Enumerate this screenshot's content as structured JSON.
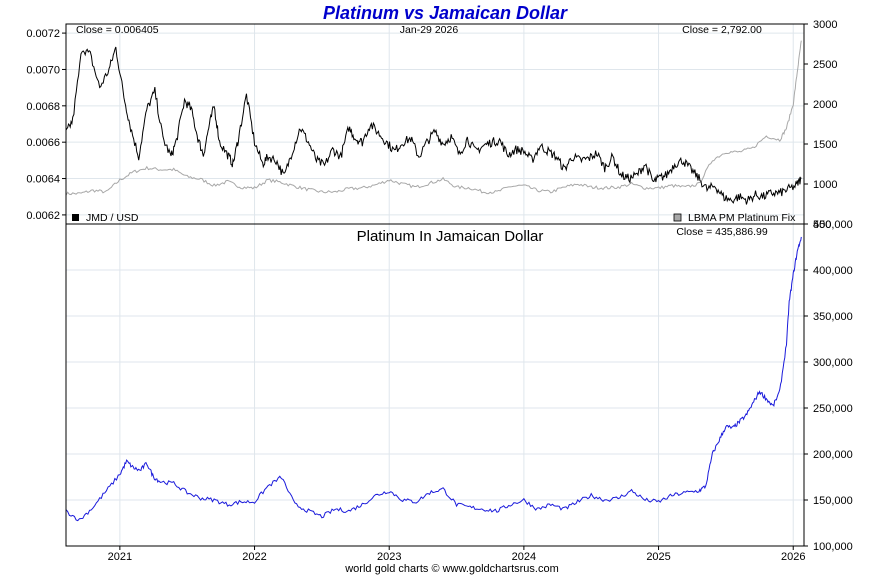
{
  "title": "Platinum vs Jamaican Dollar",
  "footer": "world gold charts © www.goldchartsrus.com",
  "top_panel": {
    "close_left": "Close = 0.006405",
    "date": "Jan-29  2026",
    "close_right": "Close = 2,792.00",
    "legend_left": "JMD / USD",
    "legend_right": "LBMA PM Platinum Fix"
  },
  "bottom_panel": {
    "subtitle": "Platinum In Jamaican Dollar",
    "close": "Close = 435,886.99"
  },
  "x_ticks": [
    "2021",
    "2022",
    "2023",
    "2024",
    "2025",
    "2026"
  ],
  "top_left_ticks": [
    "0.0072",
    "0.0070",
    "0.0068",
    "0.0066",
    "0.0064",
    "0.0062"
  ],
  "top_right_ticks": [
    "3000",
    "2500",
    "2000",
    "1500",
    "1000",
    "500"
  ],
  "bottom_ticks": [
    "450,000",
    "400,000",
    "350,000",
    "300,000",
    "250,000",
    "200,000",
    "150,000",
    "100,000"
  ],
  "colors": {
    "jmd": "#000000",
    "platinum": "#a8a8a8",
    "platinum_jmd": "#1a1adb",
    "title": "#0000cc"
  },
  "chart_data": [
    {
      "type": "line",
      "title": "Platinum vs Jamaican Dollar",
      "x_range": [
        2020.6,
        2026.08
      ],
      "ylim_left": [
        0.00615,
        0.00725
      ],
      "ylim_right": [
        500,
        3000
      ],
      "grid": true,
      "legend": "bottom",
      "series": [
        {
          "name": "JMD / USD",
          "axis": "left",
          "x": [
            2020.6,
            2020.65,
            2020.72,
            2020.78,
            2020.85,
            2020.92,
            2020.97,
            2021.03,
            2021.08,
            2021.14,
            2021.2,
            2021.26,
            2021.32,
            2021.38,
            2021.42,
            2021.48,
            2021.53,
            2021.58,
            2021.62,
            2021.66,
            2021.7,
            2021.74,
            2021.8,
            2021.84,
            2021.88,
            2021.94,
            2022.0,
            2022.06,
            2022.1,
            2022.16,
            2022.22,
            2022.28,
            2022.34,
            2022.4,
            2022.46,
            2022.52,
            2022.58,
            2022.64,
            2022.7,
            2022.75,
            2022.8,
            2022.86,
            2022.92,
            2022.98,
            2023.04,
            2023.1,
            2023.16,
            2023.22,
            2023.28,
            2023.34,
            2023.4,
            2023.46,
            2023.52,
            2023.58,
            2023.64,
            2023.7,
            2023.76,
            2023.82,
            2023.88,
            2023.94,
            2024.0,
            2024.06,
            2024.12,
            2024.18,
            2024.24,
            2024.3,
            2024.36,
            2024.42,
            2024.48,
            2024.54,
            2024.6,
            2024.66,
            2024.72,
            2024.78,
            2024.84,
            2024.9,
            2024.96,
            2025.0,
            2025.06,
            2025.12,
            2025.18,
            2025.24,
            2025.3,
            2025.36,
            2025.42,
            2025.48,
            2025.54,
            2025.6,
            2025.66,
            2025.72,
            2025.78,
            2025.84,
            2025.9,
            2025.96,
            2026.02,
            2026.06
          ],
          "y": [
            0.00665,
            0.00672,
            0.00712,
            0.00708,
            0.0069,
            0.007,
            0.00712,
            0.00685,
            0.00668,
            0.00652,
            0.00678,
            0.00688,
            0.00662,
            0.00652,
            0.00661,
            0.00683,
            0.00678,
            0.00662,
            0.00653,
            0.00668,
            0.0068,
            0.0066,
            0.00653,
            0.00648,
            0.00662,
            0.00686,
            0.0066,
            0.00648,
            0.00652,
            0.0065,
            0.00641,
            0.00655,
            0.00668,
            0.0066,
            0.0065,
            0.00647,
            0.00656,
            0.00652,
            0.00668,
            0.00662,
            0.0066,
            0.0067,
            0.00665,
            0.0066,
            0.00655,
            0.0066,
            0.00662,
            0.00652,
            0.0066,
            0.00666,
            0.00659,
            0.00663,
            0.00653,
            0.00662,
            0.00655,
            0.00658,
            0.0066,
            0.00661,
            0.00653,
            0.00656,
            0.00655,
            0.0065,
            0.00658,
            0.00655,
            0.00652,
            0.00645,
            0.00652,
            0.0065,
            0.00651,
            0.00654,
            0.00646,
            0.00652,
            0.00642,
            0.0064,
            0.00642,
            0.00648,
            0.00638,
            0.0064,
            0.00642,
            0.00648,
            0.0065,
            0.00645,
            0.0064,
            0.00634,
            0.00636,
            0.0063,
            0.00628,
            0.0063,
            0.00628,
            0.00631,
            0.0063,
            0.00632,
            0.00632,
            0.00634,
            0.00636,
            0.0064
          ]
        },
        {
          "name": "LBMA PM Platinum Fix",
          "axis": "right",
          "x": [
            2020.6,
            2020.7,
            2020.8,
            2020.9,
            2021.0,
            2021.1,
            2021.2,
            2021.3,
            2021.4,
            2021.5,
            2021.6,
            2021.7,
            2021.8,
            2021.9,
            2022.0,
            2022.1,
            2022.2,
            2022.3,
            2022.4,
            2022.5,
            2022.6,
            2022.7,
            2022.8,
            2022.9,
            2023.0,
            2023.1,
            2023.2,
            2023.3,
            2023.4,
            2023.5,
            2023.6,
            2023.7,
            2023.8,
            2023.9,
            2024.0,
            2024.1,
            2024.2,
            2024.3,
            2024.4,
            2024.5,
            2024.6,
            2024.7,
            2024.8,
            2024.9,
            2025.0,
            2025.1,
            2025.2,
            2025.3,
            2025.4,
            2025.5,
            2025.6,
            2025.7,
            2025.8,
            2025.9,
            2025.95,
            2026.0,
            2026.03,
            2026.06
          ],
          "y": [
            880,
            880,
            920,
            900,
            1050,
            1150,
            1200,
            1180,
            1180,
            1090,
            1060,
            980,
            1030,
            960,
            950,
            1050,
            1020,
            970,
            930,
            900,
            900,
            940,
            950,
            990,
            1050,
            1000,
            960,
            1010,
            1060,
            960,
            950,
            900,
            900,
            970,
            980,
            920,
            900,
            960,
            1000,
            960,
            950,
            960,
            1000,
            950,
            950,
            980,
            960,
            1000,
            1300,
            1400,
            1400,
            1450,
            1600,
            1550,
            1700,
            2000,
            2400,
            2792
          ]
        },
        {
          "name": "Platinum In Jamaican Dollar",
          "axis": "bottom",
          "ylim": [
            100000,
            450000
          ],
          "x": [
            2020.6,
            2020.7,
            2020.8,
            2020.9,
            2021.0,
            2021.05,
            2021.1,
            2021.15,
            2021.2,
            2021.25,
            2021.3,
            2021.4,
            2021.5,
            2021.6,
            2021.7,
            2021.8,
            2021.9,
            2022.0,
            2022.1,
            2022.2,
            2022.3,
            2022.4,
            2022.5,
            2022.6,
            2022.7,
            2022.8,
            2022.9,
            2023.0,
            2023.1,
            2023.2,
            2023.3,
            2023.4,
            2023.5,
            2023.6,
            2023.7,
            2023.8,
            2023.9,
            2024.0,
            2024.1,
            2024.2,
            2024.3,
            2024.4,
            2024.5,
            2024.6,
            2024.7,
            2024.8,
            2024.9,
            2025.0,
            2025.1,
            2025.2,
            2025.3,
            2025.35,
            2025.4,
            2025.45,
            2025.5,
            2025.55,
            2025.6,
            2025.65,
            2025.7,
            2025.75,
            2025.8,
            2025.85,
            2025.9,
            2025.95,
            2025.97,
            2026.0,
            2026.03,
            2026.06
          ],
          "y": [
            138000,
            128000,
            142000,
            160000,
            178000,
            192000,
            185000,
            182000,
            190000,
            175000,
            170000,
            168000,
            158000,
            152000,
            150000,
            145000,
            148000,
            148000,
            165000,
            175000,
            145000,
            138000,
            132000,
            140000,
            138000,
            145000,
            155000,
            160000,
            150000,
            148000,
            158000,
            162000,
            145000,
            142000,
            140000,
            138000,
            145000,
            150000,
            140000,
            145000,
            140000,
            148000,
            155000,
            150000,
            152000,
            160000,
            150000,
            148000,
            155000,
            158000,
            160000,
            165000,
            200000,
            215000,
            230000,
            228000,
            235000,
            242000,
            255000,
            268000,
            260000,
            252000,
            268000,
            320000,
            365000,
            395000,
            420000,
            435887
          ]
        }
      ]
    }
  ]
}
